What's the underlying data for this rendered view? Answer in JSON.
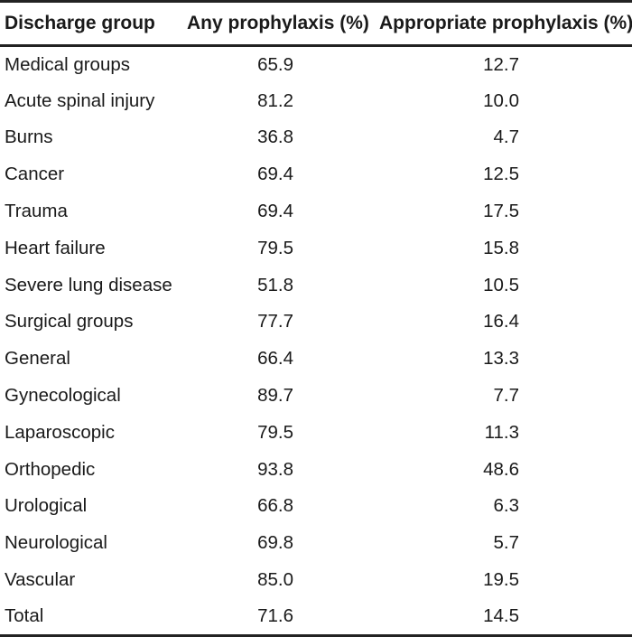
{
  "table": {
    "headers": {
      "group": "Discharge group",
      "any": "Any prophylaxis (%)",
      "appropriate": "Appropriate prophylaxis (%)"
    },
    "rows": [
      {
        "group": "Medical groups",
        "any": "65.9",
        "appropriate": "12.7"
      },
      {
        "group": "Acute spinal injury",
        "any": "81.2",
        "appropriate": "10.0"
      },
      {
        "group": "Burns",
        "any": "36.8",
        "appropriate": "4.7"
      },
      {
        "group": "Cancer",
        "any": "69.4",
        "appropriate": "12.5"
      },
      {
        "group": "Trauma",
        "any": "69.4",
        "appropriate": "17.5"
      },
      {
        "group": "Heart failure",
        "any": "79.5",
        "appropriate": "15.8"
      },
      {
        "group": "Severe lung disease",
        "any": "51.8",
        "appropriate": "10.5"
      },
      {
        "group": "Surgical groups",
        "any": "77.7",
        "appropriate": "16.4"
      },
      {
        "group": "General",
        "any": "66.4",
        "appropriate": "13.3"
      },
      {
        "group": "Gynecological",
        "any": "89.7",
        "appropriate": "7.7"
      },
      {
        "group": "Laparoscopic",
        "any": "79.5",
        "appropriate": "11.3"
      },
      {
        "group": "Orthopedic",
        "any": "93.8",
        "appropriate": "48.6"
      },
      {
        "group": "Urological",
        "any": "66.8",
        "appropriate": "6.3"
      },
      {
        "group": "Neurological",
        "any": "69.8",
        "appropriate": "5.7"
      },
      {
        "group": "Vascular",
        "any": "85.0",
        "appropriate": "19.5"
      },
      {
        "group": "Total",
        "any": "71.6",
        "appropriate": "14.5"
      }
    ]
  }
}
